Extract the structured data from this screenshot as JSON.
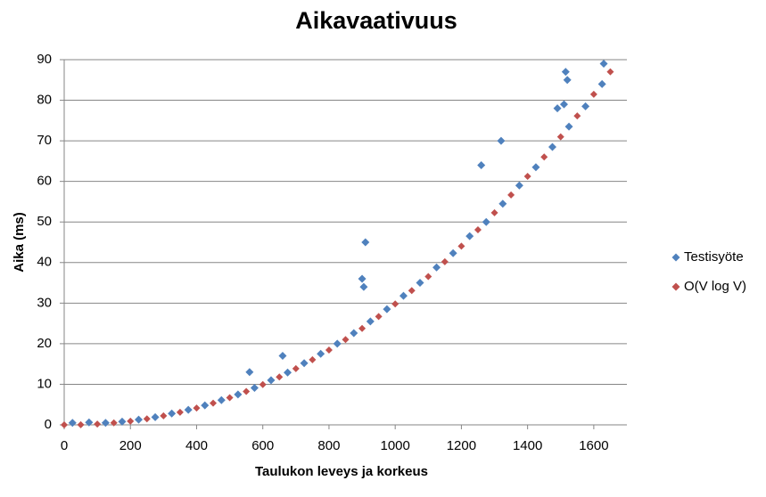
{
  "chart_data": {
    "type": "scatter",
    "title": "Aikavaativuus",
    "x_label": "Taulukon leveys ja korkeus",
    "y_label": "Aika (ms)",
    "xlim": [
      0,
      1700
    ],
    "xticks": [
      0,
      200,
      400,
      600,
      800,
      1000,
      1200,
      1400,
      1600
    ],
    "ylim": [
      0,
      90
    ],
    "yticks": [
      0,
      10,
      20,
      30,
      40,
      50,
      60,
      70,
      80,
      90
    ],
    "grid": true,
    "legend": "right",
    "series": [
      {
        "name": "Testisyöte",
        "color": "#4f81bd",
        "x": [
          25,
          75,
          125,
          175,
          225,
          275,
          325,
          375,
          425,
          475,
          525,
          575,
          625,
          675,
          725,
          775,
          825,
          875,
          925,
          975,
          1025,
          1075,
          1125,
          1175,
          1225,
          1275,
          1325,
          1375,
          1425,
          1475,
          1525,
          1575,
          1625,
          910,
          900,
          905,
          1320,
          1515,
          1520,
          1260,
          1630,
          560,
          660,
          1510,
          1490
        ],
        "values": [
          0.5,
          0.6,
          0.5,
          0.8,
          1.3,
          1.9,
          2.8,
          3.7,
          4.8,
          6.1,
          7.5,
          9.1,
          11,
          12.9,
          15.2,
          17.5,
          20,
          22.6,
          25.5,
          28.5,
          31.8,
          35,
          38.8,
          42.3,
          46.5,
          50,
          54.5,
          59,
          63.5,
          68.5,
          73.5,
          78.5,
          84,
          45,
          36,
          34,
          70,
          87,
          85,
          64,
          89,
          13,
          17,
          79,
          78
        ]
      },
      {
        "name": "O(V log V)",
        "color": "#c0504d",
        "x": [
          0,
          50,
          100,
          150,
          200,
          250,
          300,
          350,
          400,
          450,
          500,
          550,
          600,
          650,
          700,
          750,
          800,
          850,
          900,
          950,
          1000,
          1050,
          1100,
          1150,
          1200,
          1250,
          1300,
          1350,
          1400,
          1450,
          1500,
          1550,
          1600,
          1650
        ],
        "values": [
          0,
          0.04,
          0.2,
          0.49,
          0.91,
          1.49,
          2.21,
          3.1,
          4.14,
          5.34,
          6.7,
          8.23,
          9.93,
          11.8,
          13.85,
          16.06,
          18.45,
          21.02,
          23.77,
          26.69,
          29.8,
          33.08,
          36.55,
          40.2,
          44.04,
          48.06,
          52.27,
          56.67,
          61.25,
          66.02,
          70.98,
          76.13,
          81.47,
          87
        ]
      }
    ]
  }
}
